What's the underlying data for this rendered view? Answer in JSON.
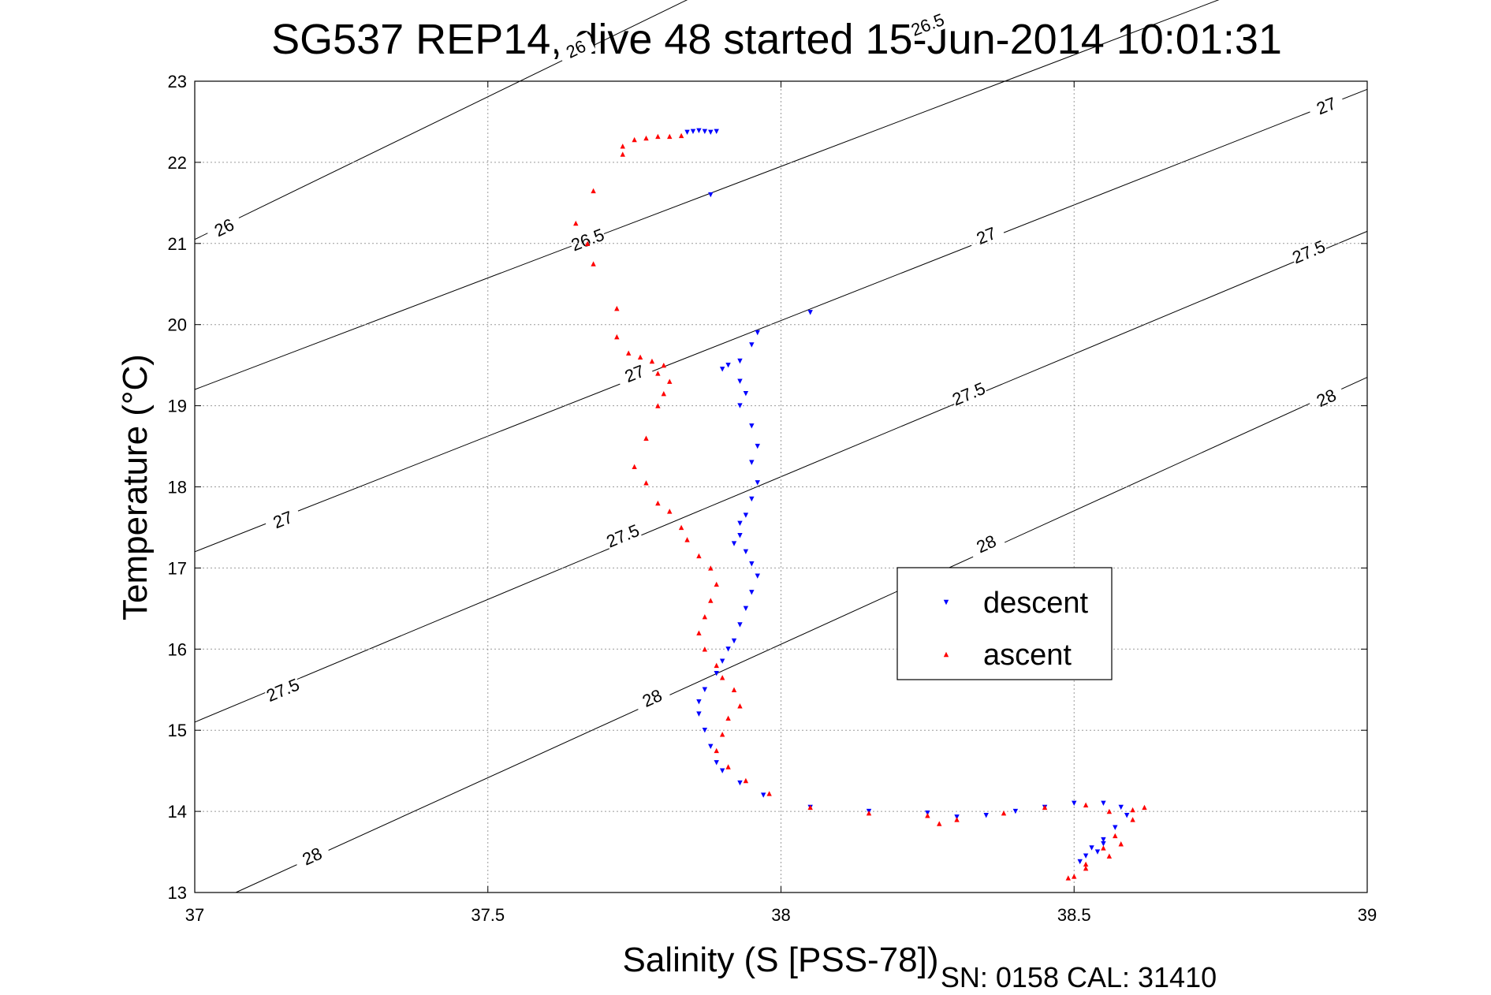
{
  "chart_data": {
    "type": "scatter",
    "title": "SG537 REP14, dive 48 started 15-Jun-2014 10:01:31",
    "xlabel": "Salinity (S [PSS-78])",
    "ylabel": "Temperature (°C)",
    "footer": "SN: 0158  CAL: 31410",
    "xlim": [
      37,
      39
    ],
    "ylim": [
      13,
      23
    ],
    "xticks": [
      37,
      37.5,
      38,
      38.5,
      39
    ],
    "yticks": [
      13,
      14,
      15,
      16,
      17,
      18,
      19,
      20,
      21,
      22,
      23
    ],
    "xtick_labels": [
      "37",
      "37.5",
      "38",
      "38.5",
      "39"
    ],
    "ytick_labels": [
      "13",
      "14",
      "15",
      "16",
      "17",
      "18",
      "19",
      "20",
      "21",
      "22",
      "23"
    ],
    "grid": true,
    "legend_position": "center-right",
    "density_contours": [
      {
        "label": "26",
        "from": [
          37,
          21.05
        ],
        "to": [
          38.55,
          26.5
        ],
        "label_points": [
          [
            37.05,
            21.2
          ],
          [
            37.65,
            23.4
          ]
        ]
      },
      {
        "label": "26.5",
        "from": [
          37,
          19.2
        ],
        "to": [
          39,
          24.7
        ],
        "label_points": [
          [
            37.67,
            21.05
          ],
          [
            38.25,
            23.7
          ]
        ]
      },
      {
        "label": "27",
        "from": [
          37,
          17.2
        ],
        "to": [
          39,
          22.9
        ],
        "label_points": [
          [
            37.15,
            17.6
          ],
          [
            37.75,
            19.4
          ],
          [
            38.35,
            21.1
          ],
          [
            38.93,
            22.7
          ]
        ]
      },
      {
        "label": "27.5",
        "from": [
          37,
          15.1
        ],
        "to": [
          39,
          21.15
        ],
        "label_points": [
          [
            37.15,
            15.5
          ],
          [
            37.73,
            17.4
          ],
          [
            38.32,
            19.15
          ],
          [
            38.9,
            20.9
          ]
        ]
      },
      {
        "label": "28",
        "from": [
          37.07,
          13
        ],
        "to": [
          39,
          19.35
        ],
        "label_points": [
          [
            37.2,
            13.45
          ],
          [
            37.78,
            15.4
          ],
          [
            38.35,
            17.3
          ],
          [
            38.93,
            19.1
          ]
        ]
      }
    ],
    "series": [
      {
        "name": "descent",
        "color": "#0000ff",
        "marker": "triangle-down",
        "points": [
          [
            37.84,
            22.37
          ],
          [
            37.85,
            22.38
          ],
          [
            37.86,
            22.39
          ],
          [
            37.87,
            22.38
          ],
          [
            37.88,
            22.37
          ],
          [
            37.89,
            22.38
          ],
          [
            37.88,
            21.6
          ],
          [
            38.05,
            20.15
          ],
          [
            37.96,
            19.9
          ],
          [
            37.95,
            19.75
          ],
          [
            37.93,
            19.55
          ],
          [
            37.91,
            19.5
          ],
          [
            37.9,
            19.45
          ],
          [
            37.93,
            19.3
          ],
          [
            37.94,
            19.15
          ],
          [
            37.93,
            19.0
          ],
          [
            37.95,
            18.75
          ],
          [
            37.96,
            18.5
          ],
          [
            37.95,
            18.3
          ],
          [
            37.96,
            18.05
          ],
          [
            37.95,
            17.85
          ],
          [
            37.94,
            17.65
          ],
          [
            37.93,
            17.55
          ],
          [
            37.93,
            17.4
          ],
          [
            37.92,
            17.3
          ],
          [
            37.94,
            17.2
          ],
          [
            37.95,
            17.05
          ],
          [
            37.96,
            16.9
          ],
          [
            37.95,
            16.7
          ],
          [
            37.94,
            16.5
          ],
          [
            37.93,
            16.3
          ],
          [
            37.92,
            16.1
          ],
          [
            37.91,
            16.0
          ],
          [
            37.9,
            15.85
          ],
          [
            37.89,
            15.7
          ],
          [
            37.87,
            15.5
          ],
          [
            37.86,
            15.35
          ],
          [
            37.86,
            15.2
          ],
          [
            37.87,
            15.0
          ],
          [
            37.88,
            14.8
          ],
          [
            37.89,
            14.6
          ],
          [
            37.9,
            14.5
          ],
          [
            37.93,
            14.35
          ],
          [
            37.97,
            14.2
          ],
          [
            38.05,
            14.05
          ],
          [
            38.15,
            14.0
          ],
          [
            38.25,
            13.98
          ],
          [
            38.3,
            13.93
          ],
          [
            38.35,
            13.95
          ],
          [
            38.4,
            14.0
          ],
          [
            38.45,
            14.05
          ],
          [
            38.5,
            14.1
          ],
          [
            38.55,
            14.1
          ],
          [
            38.58,
            14.05
          ],
          [
            38.59,
            13.95
          ],
          [
            38.57,
            13.8
          ],
          [
            38.55,
            13.65
          ],
          [
            38.54,
            13.5
          ],
          [
            38.52,
            13.45
          ],
          [
            38.51,
            13.38
          ],
          [
            38.53,
            13.55
          ],
          [
            38.55,
            13.6
          ]
        ]
      },
      {
        "name": "ascent",
        "color": "#ff0000",
        "marker": "triangle-up",
        "points": [
          [
            37.73,
            22.2
          ],
          [
            37.73,
            22.1
          ],
          [
            37.75,
            22.28
          ],
          [
            37.77,
            22.3
          ],
          [
            37.79,
            22.32
          ],
          [
            37.81,
            22.32
          ],
          [
            37.83,
            22.33
          ],
          [
            37.68,
            21.65
          ],
          [
            37.65,
            21.25
          ],
          [
            37.67,
            21.0
          ],
          [
            37.68,
            20.75
          ],
          [
            37.72,
            20.2
          ],
          [
            37.72,
            19.85
          ],
          [
            37.74,
            19.65
          ],
          [
            37.76,
            19.6
          ],
          [
            37.78,
            19.55
          ],
          [
            37.8,
            19.5
          ],
          [
            37.79,
            19.4
          ],
          [
            37.81,
            19.3
          ],
          [
            37.8,
            19.15
          ],
          [
            37.79,
            19.0
          ],
          [
            37.77,
            18.6
          ],
          [
            37.75,
            18.25
          ],
          [
            37.77,
            18.05
          ],
          [
            37.79,
            17.8
          ],
          [
            37.81,
            17.7
          ],
          [
            37.83,
            17.5
          ],
          [
            37.84,
            17.35
          ],
          [
            37.86,
            17.15
          ],
          [
            37.88,
            17.0
          ],
          [
            37.89,
            16.8
          ],
          [
            37.88,
            16.6
          ],
          [
            37.87,
            16.4
          ],
          [
            37.86,
            16.2
          ],
          [
            37.87,
            16.0
          ],
          [
            37.89,
            15.8
          ],
          [
            37.9,
            15.65
          ],
          [
            37.92,
            15.5
          ],
          [
            37.93,
            15.3
          ],
          [
            37.91,
            15.15
          ],
          [
            37.9,
            14.95
          ],
          [
            37.89,
            14.75
          ],
          [
            37.91,
            14.55
          ],
          [
            37.94,
            14.38
          ],
          [
            37.98,
            14.22
          ],
          [
            38.05,
            14.05
          ],
          [
            38.15,
            13.98
          ],
          [
            38.25,
            13.95
          ],
          [
            38.27,
            13.85
          ],
          [
            38.3,
            13.9
          ],
          [
            38.38,
            13.98
          ],
          [
            38.45,
            14.05
          ],
          [
            38.52,
            14.08
          ],
          [
            38.56,
            14.0
          ],
          [
            38.6,
            14.02
          ],
          [
            38.62,
            14.05
          ],
          [
            38.6,
            13.9
          ],
          [
            38.57,
            13.7
          ],
          [
            38.55,
            13.55
          ],
          [
            38.52,
            13.35
          ],
          [
            38.49,
            13.18
          ],
          [
            38.5,
            13.2
          ],
          [
            38.52,
            13.3
          ],
          [
            38.56,
            13.45
          ],
          [
            38.58,
            13.6
          ]
        ]
      }
    ]
  }
}
